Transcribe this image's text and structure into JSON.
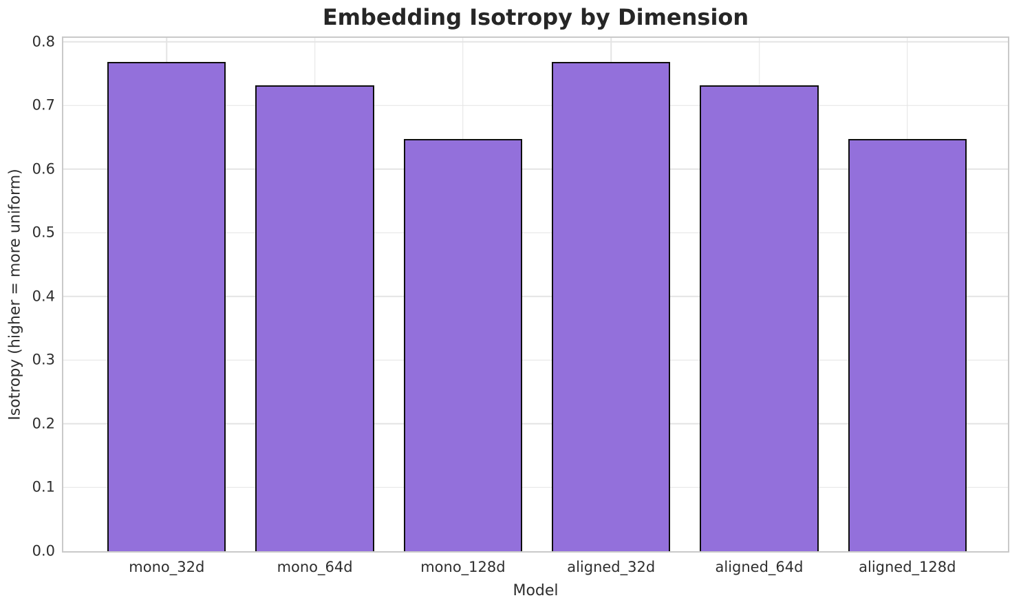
{
  "chart_data": {
    "type": "bar",
    "title": "Embedding Isotropy by Dimension",
    "xlabel": "Model",
    "ylabel": "Isotropy (higher = more uniform)",
    "categories": [
      "mono_32d",
      "mono_64d",
      "mono_128d",
      "aligned_32d",
      "aligned_64d",
      "aligned_128d"
    ],
    "values": [
      0.768,
      0.731,
      0.647,
      0.768,
      0.731,
      0.647
    ],
    "yticks": [
      0.0,
      0.1,
      0.2,
      0.3,
      0.4,
      0.5,
      0.6,
      0.7,
      0.8
    ],
    "ytick_decimals": 1,
    "ylim": [
      0,
      0.806
    ],
    "xlim": [
      -0.698,
      5.679
    ],
    "bar_width_units": 0.8,
    "grid": "both",
    "legend": null,
    "colors": {
      "bar_fill": "#9370DB",
      "bar_edge": "#0d0d0d",
      "grid_line": "#e4e4e4",
      "spine": "#c9c9c9",
      "text": "#2e2e2e",
      "title_text": "#262626",
      "background": "#ffffff"
    }
  }
}
